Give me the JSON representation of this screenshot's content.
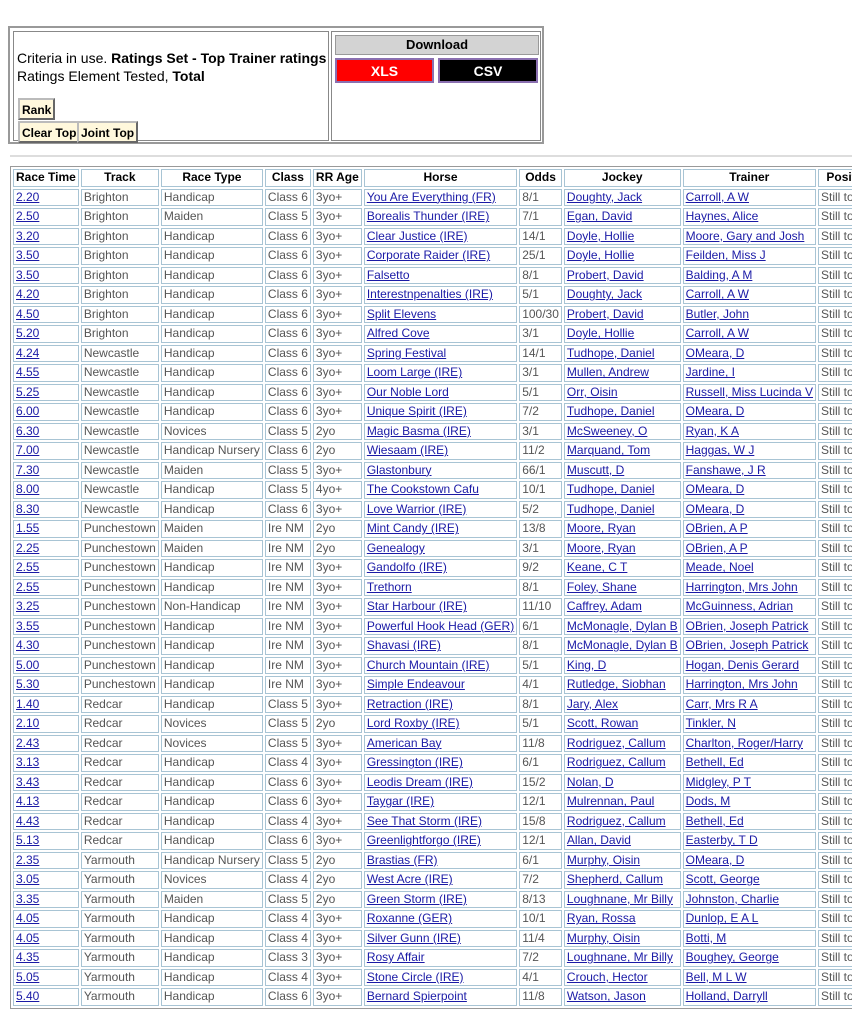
{
  "criteria": {
    "line1_prefix": "Criteria in use. ",
    "line1_bold": "Ratings Set - Top Trainer ratings",
    "line2_prefix": "Ratings Element Tested, ",
    "line2_bold": "Total",
    "rank_label": "Rank",
    "clear_top_label": "Clear Top",
    "joint_top_label": "Joint Top"
  },
  "download": {
    "title": "Download",
    "xls_label": "XLS",
    "csv_label": "CSV",
    "xls_color": "#ff0000",
    "csv_color": "#000000"
  },
  "table": {
    "headers": [
      "Race Time",
      "Track",
      "Race Type",
      "Class",
      "RR Age",
      "Horse",
      "Odds",
      "Jockey",
      "Trainer",
      "Position"
    ],
    "rows": [
      [
        "2.20",
        "Brighton",
        "Handicap",
        "Class 6",
        "3yo+",
        "You Are Everything (FR)",
        "8/1",
        "Doughty, Jack",
        "Carroll, A W",
        "Still to Run"
      ],
      [
        "2.50",
        "Brighton",
        "Maiden",
        "Class 5",
        "3yo+",
        "Borealis Thunder (IRE)",
        "7/1",
        "Egan, David",
        "Haynes, Alice",
        "Still to Run"
      ],
      [
        "3.20",
        "Brighton",
        "Handicap",
        "Class 6",
        "3yo+",
        "Clear Justice (IRE)",
        "14/1",
        "Doyle, Hollie",
        "Moore, Gary and Josh",
        "Still to Run"
      ],
      [
        "3.50",
        "Brighton",
        "Handicap",
        "Class 6",
        "3yo+",
        "Corporate Raider (IRE)",
        "25/1",
        "Doyle, Hollie",
        "Feilden, Miss J",
        "Still to Run"
      ],
      [
        "3.50",
        "Brighton",
        "Handicap",
        "Class 6",
        "3yo+",
        "Falsetto",
        "8/1",
        "Probert, David",
        "Balding, A M",
        "Still to Run"
      ],
      [
        "4.20",
        "Brighton",
        "Handicap",
        "Class 6",
        "3yo+",
        "Interestnpenalties (IRE)",
        "5/1",
        "Doughty, Jack",
        "Carroll, A W",
        "Still to Run"
      ],
      [
        "4.50",
        "Brighton",
        "Handicap",
        "Class 6",
        "3yo+",
        "Split Elevens",
        "100/30",
        "Probert, David",
        "Butler, John",
        "Still to Run"
      ],
      [
        "5.20",
        "Brighton",
        "Handicap",
        "Class 6",
        "3yo+",
        "Alfred Cove",
        "3/1",
        "Doyle, Hollie",
        "Carroll, A W",
        "Still to Run"
      ],
      [
        "4.24",
        "Newcastle",
        "Handicap",
        "Class 6",
        "3yo+",
        "Spring Festival",
        "14/1",
        "Tudhope, Daniel",
        "OMeara, D",
        "Still to Run"
      ],
      [
        "4.55",
        "Newcastle",
        "Handicap",
        "Class 6",
        "3yo+",
        "Loom Large (IRE)",
        "3/1",
        "Mullen, Andrew",
        "Jardine, I",
        "Still to Run"
      ],
      [
        "5.25",
        "Newcastle",
        "Handicap",
        "Class 6",
        "3yo+",
        "Our Noble Lord",
        "5/1",
        "Orr, Oisin",
        "Russell, Miss Lucinda V",
        "Still to Run"
      ],
      [
        "6.00",
        "Newcastle",
        "Handicap",
        "Class 6",
        "3yo+",
        "Unique Spirit (IRE)",
        "7/2",
        "Tudhope, Daniel",
        "OMeara, D",
        "Still to Run"
      ],
      [
        "6.30",
        "Newcastle",
        "Novices",
        "Class 5",
        "2yo",
        "Magic Basma (IRE)",
        "3/1",
        "McSweeney, O",
        "Ryan, K A",
        "Still to Run"
      ],
      [
        "7.00",
        "Newcastle",
        "Handicap Nursery",
        "Class 6",
        "2yo",
        "Wiesaam (IRE)",
        "11/2",
        "Marquand, Tom",
        "Haggas, W J",
        "Still to Run"
      ],
      [
        "7.30",
        "Newcastle",
        "Maiden",
        "Class 5",
        "3yo+",
        "Glastonbury",
        "66/1",
        "Muscutt, D",
        "Fanshawe, J R",
        "Still to Run"
      ],
      [
        "8.00",
        "Newcastle",
        "Handicap",
        "Class 5",
        "4yo+",
        "The Cookstown Cafu",
        "10/1",
        "Tudhope, Daniel",
        "OMeara, D",
        "Still to Run"
      ],
      [
        "8.30",
        "Newcastle",
        "Handicap",
        "Class 6",
        "3yo+",
        "Love Warrior (IRE)",
        "5/2",
        "Tudhope, Daniel",
        "OMeara, D",
        "Still to Run"
      ],
      [
        "1.55",
        "Punchestown",
        "Maiden",
        "Ire NM",
        "2yo",
        "Mint Candy (IRE)",
        "13/8",
        "Moore, Ryan",
        "OBrien, A P",
        "Still to Run"
      ],
      [
        "2.25",
        "Punchestown",
        "Maiden",
        "Ire NM",
        "2yo",
        "Genealogy",
        "3/1",
        "Moore, Ryan",
        "OBrien, A P",
        "Still to Run"
      ],
      [
        "2.55",
        "Punchestown",
        "Handicap",
        "Ire NM",
        "3yo+",
        "Gandolfo (IRE)",
        "9/2",
        "Keane, C T",
        "Meade, Noel",
        "Still to Run"
      ],
      [
        "2.55",
        "Punchestown",
        "Handicap",
        "Ire NM",
        "3yo+",
        "Trethorn",
        "8/1",
        "Foley, Shane",
        "Harrington, Mrs John",
        "Still to Run"
      ],
      [
        "3.25",
        "Punchestown",
        "Non-Handicap",
        "Ire NM",
        "3yo+",
        "Star Harbour (IRE)",
        "11/10",
        "Caffrey, Adam",
        "McGuinness, Adrian",
        "Still to Run"
      ],
      [
        "3.55",
        "Punchestown",
        "Handicap",
        "Ire NM",
        "3yo+",
        "Powerful Hook Head (GER)",
        "6/1",
        "McMonagle, Dylan B",
        "OBrien, Joseph Patrick",
        "Still to Run"
      ],
      [
        "4.30",
        "Punchestown",
        "Handicap",
        "Ire NM",
        "3yo+",
        "Shavasi (IRE)",
        "8/1",
        "McMonagle, Dylan B",
        "OBrien, Joseph Patrick",
        "Still to Run"
      ],
      [
        "5.00",
        "Punchestown",
        "Handicap",
        "Ire NM",
        "3yo+",
        "Church Mountain (IRE)",
        "5/1",
        "King, D",
        "Hogan, Denis Gerard",
        "Still to Run"
      ],
      [
        "5.30",
        "Punchestown",
        "Handicap",
        "Ire NM",
        "3yo+",
        "Simple Endeavour",
        "4/1",
        "Rutledge, Siobhan",
        "Harrington, Mrs John",
        "Still to Run"
      ],
      [
        "1.40",
        "Redcar",
        "Handicap",
        "Class 5",
        "3yo+",
        "Retraction (IRE)",
        "8/1",
        "Jary, Alex",
        "Carr, Mrs R A",
        "Still to Run"
      ],
      [
        "2.10",
        "Redcar",
        "Novices",
        "Class 5",
        "2yo",
        "Lord Roxby (IRE)",
        "5/1",
        "Scott, Rowan",
        "Tinkler, N",
        "Still to Run"
      ],
      [
        "2.43",
        "Redcar",
        "Novices",
        "Class 5",
        "3yo+",
        "American Bay",
        "11/8",
        "Rodriguez, Callum",
        "Charlton, Roger/Harry",
        "Still to Run"
      ],
      [
        "3.13",
        "Redcar",
        "Handicap",
        "Class 4",
        "3yo+",
        "Gressington (IRE)",
        "6/1",
        "Rodriguez, Callum",
        "Bethell, Ed",
        "Still to Run"
      ],
      [
        "3.43",
        "Redcar",
        "Handicap",
        "Class 6",
        "3yo+",
        "Leodis Dream (IRE)",
        "15/2",
        "Nolan, D",
        "Midgley, P T",
        "Still to Run"
      ],
      [
        "4.13",
        "Redcar",
        "Handicap",
        "Class 6",
        "3yo+",
        "Taygar (IRE)",
        "12/1",
        "Mulrennan, Paul",
        "Dods, M",
        "Still to Run"
      ],
      [
        "4.43",
        "Redcar",
        "Handicap",
        "Class 4",
        "3yo+",
        "See That Storm (IRE)",
        "15/8",
        "Rodriguez, Callum",
        "Bethell, Ed",
        "Still to Run"
      ],
      [
        "5.13",
        "Redcar",
        "Handicap",
        "Class 6",
        "3yo+",
        "Greenlightforgo (IRE)",
        "12/1",
        "Allan, David",
        "Easterby, T D",
        "Still to Run"
      ],
      [
        "2.35",
        "Yarmouth",
        "Handicap Nursery",
        "Class 5",
        "2yo",
        "Brastias (FR)",
        "6/1",
        "Murphy, Oisin",
        "OMeara, D",
        "Still to Run"
      ],
      [
        "3.05",
        "Yarmouth",
        "Novices",
        "Class 4",
        "2yo",
        "West Acre (IRE)",
        "7/2",
        "Shepherd, Callum",
        "Scott, George",
        "Still to Run"
      ],
      [
        "3.35",
        "Yarmouth",
        "Maiden",
        "Class 5",
        "2yo",
        "Green Storm (IRE)",
        "8/13",
        "Loughnane, Mr Billy",
        "Johnston, Charlie",
        "Still to Run"
      ],
      [
        "4.05",
        "Yarmouth",
        "Handicap",
        "Class 4",
        "3yo+",
        "Roxanne (GER)",
        "10/1",
        "Ryan, Rossa",
        "Dunlop, E A L",
        "Still to Run"
      ],
      [
        "4.05",
        "Yarmouth",
        "Handicap",
        "Class 4",
        "3yo+",
        "Silver Gunn (IRE)",
        "11/4",
        "Murphy, Oisin",
        "Botti, M",
        "Still to Run"
      ],
      [
        "4.35",
        "Yarmouth",
        "Handicap",
        "Class 3",
        "3yo+",
        "Rosy Affair",
        "7/2",
        "Loughnane, Mr Billy",
        "Boughey, George",
        "Still to Run"
      ],
      [
        "5.05",
        "Yarmouth",
        "Handicap",
        "Class 4",
        "3yo+",
        "Stone Circle (IRE)",
        "4/1",
        "Crouch, Hector",
        "Bell, M L W",
        "Still to Run"
      ],
      [
        "5.40",
        "Yarmouth",
        "Handicap",
        "Class 6",
        "3yo+",
        "Bernard Spierpoint",
        "11/8",
        "Watson, Jason",
        "Holland, Darryll",
        "Still to Run"
      ]
    ]
  }
}
